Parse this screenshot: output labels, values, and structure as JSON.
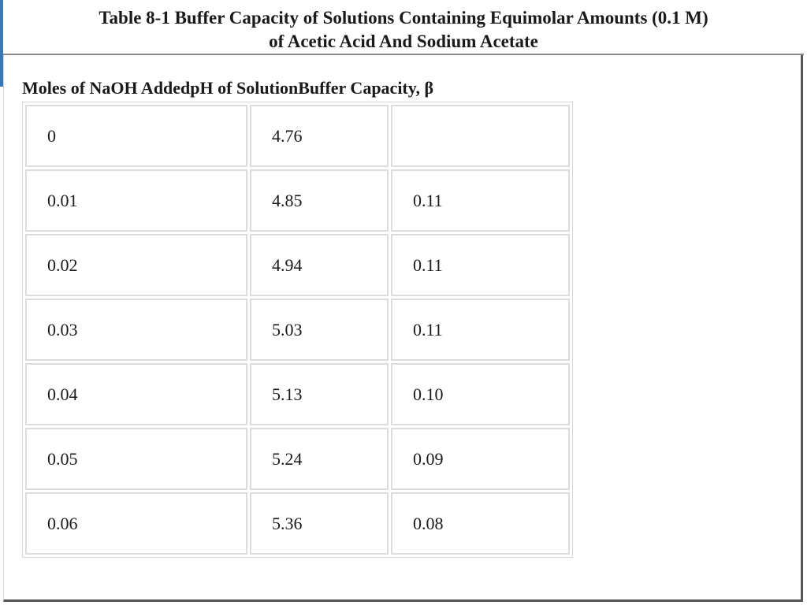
{
  "title": {
    "line1": "Table 8-1 Buffer Capacity of Solutions Containing Equimolar Amounts (0.1 M)",
    "line2": "of Acetic Acid And Sodium Acetate"
  },
  "columns": [
    "Moles of NaOH Added",
    "pH of Solution",
    "Buffer Capacity, β"
  ],
  "rows": [
    [
      "0",
      "4.76",
      ""
    ],
    [
      "0.01",
      "4.85",
      "0.11"
    ],
    [
      "0.02",
      "4.94",
      "0.11"
    ],
    [
      "0.03",
      "5.03",
      "0.11"
    ],
    [
      "0.04",
      "5.13",
      "0.10"
    ],
    [
      "0.05",
      "5.24",
      "0.09"
    ],
    [
      "0.06",
      "5.36",
      "0.08"
    ]
  ]
}
